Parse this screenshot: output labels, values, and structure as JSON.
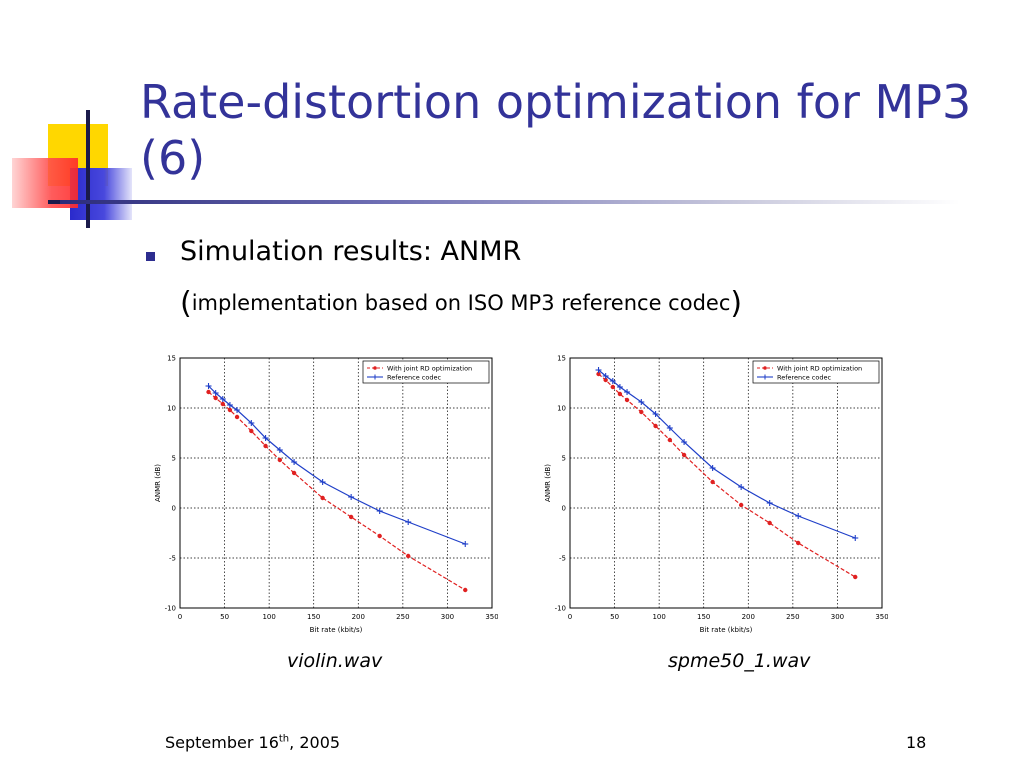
{
  "slide": {
    "title": "Rate-distortion optimization for MP3 (6)",
    "bullet": "Simulation results: ANMR",
    "sub_open": "(",
    "sub_text": "implementation based on ISO MP3 reference codec",
    "sub_close": ")",
    "footer_date_pre": "September 16",
    "footer_date_sup": "th",
    "footer_date_post": ", 2005",
    "page_number": "18"
  },
  "colors": {
    "title": "#333399",
    "bullet": "#2d2d8f",
    "rd_series": "#e02020",
    "ref_series": "#1f3fc8"
  },
  "chart_data": [
    {
      "type": "line",
      "caption": "violin.wav",
      "xlabel": "Bit rate (kbit/s)",
      "ylabel": "ANMR (dB)",
      "xlim": [
        0,
        350
      ],
      "ylim": [
        -10,
        15
      ],
      "xticks": [
        "0",
        "50",
        "100",
        "150",
        "200",
        "250",
        "300",
        "350"
      ],
      "yticks": [
        "-10",
        "-5",
        "0",
        "5",
        "10",
        "15"
      ],
      "grid": true,
      "legend_position": "top-right",
      "series": [
        {
          "name": "With joint RD optimization",
          "color": "#e02020",
          "style": "dashed",
          "marker": "dot",
          "x": [
            32,
            40,
            48,
            56,
            64,
            80,
            96,
            112,
            128,
            160,
            192,
            224,
            256,
            320
          ],
          "y": [
            11.6,
            11.0,
            10.4,
            9.8,
            9.1,
            7.7,
            6.2,
            4.8,
            3.5,
            1.0,
            -0.9,
            -2.8,
            -4.8,
            -8.2
          ]
        },
        {
          "name": "Reference codec",
          "color": "#1f3fc8",
          "style": "solid",
          "marker": "plus",
          "x": [
            32,
            40,
            48,
            56,
            64,
            80,
            96,
            112,
            128,
            160,
            192,
            224,
            256,
            320
          ],
          "y": [
            12.2,
            11.5,
            10.9,
            10.3,
            9.8,
            8.5,
            7.0,
            5.8,
            4.6,
            2.6,
            1.1,
            -0.3,
            -1.4,
            -3.6
          ]
        }
      ]
    },
    {
      "type": "line",
      "caption": "spme50_1.wav",
      "xlabel": "Bit rate (kbit/s)",
      "ylabel": "ANMR (dB)",
      "xlim": [
        0,
        350
      ],
      "ylim": [
        -10,
        15
      ],
      "xticks": [
        "0",
        "50",
        "100",
        "150",
        "200",
        "250",
        "300",
        "350"
      ],
      "yticks": [
        "-10",
        "-5",
        "0",
        "5",
        "10",
        "15"
      ],
      "grid": true,
      "legend_position": "top-right",
      "series": [
        {
          "name": "With joint RD optimization",
          "color": "#e02020",
          "style": "dashed",
          "marker": "dot",
          "x": [
            32,
            40,
            48,
            56,
            64,
            80,
            96,
            112,
            128,
            160,
            192,
            224,
            256,
            320
          ],
          "y": [
            13.4,
            12.8,
            12.1,
            11.4,
            10.8,
            9.6,
            8.2,
            6.8,
            5.3,
            2.6,
            0.3,
            -1.5,
            -3.5,
            -6.9
          ]
        },
        {
          "name": "Reference codec",
          "color": "#1f3fc8",
          "style": "solid",
          "marker": "plus",
          "x": [
            32,
            40,
            48,
            56,
            64,
            80,
            96,
            112,
            128,
            160,
            192,
            224,
            256,
            320
          ],
          "y": [
            13.8,
            13.2,
            12.7,
            12.1,
            11.6,
            10.6,
            9.4,
            8.0,
            6.6,
            4.0,
            2.1,
            0.5,
            -0.8,
            -3.0
          ]
        }
      ]
    }
  ]
}
